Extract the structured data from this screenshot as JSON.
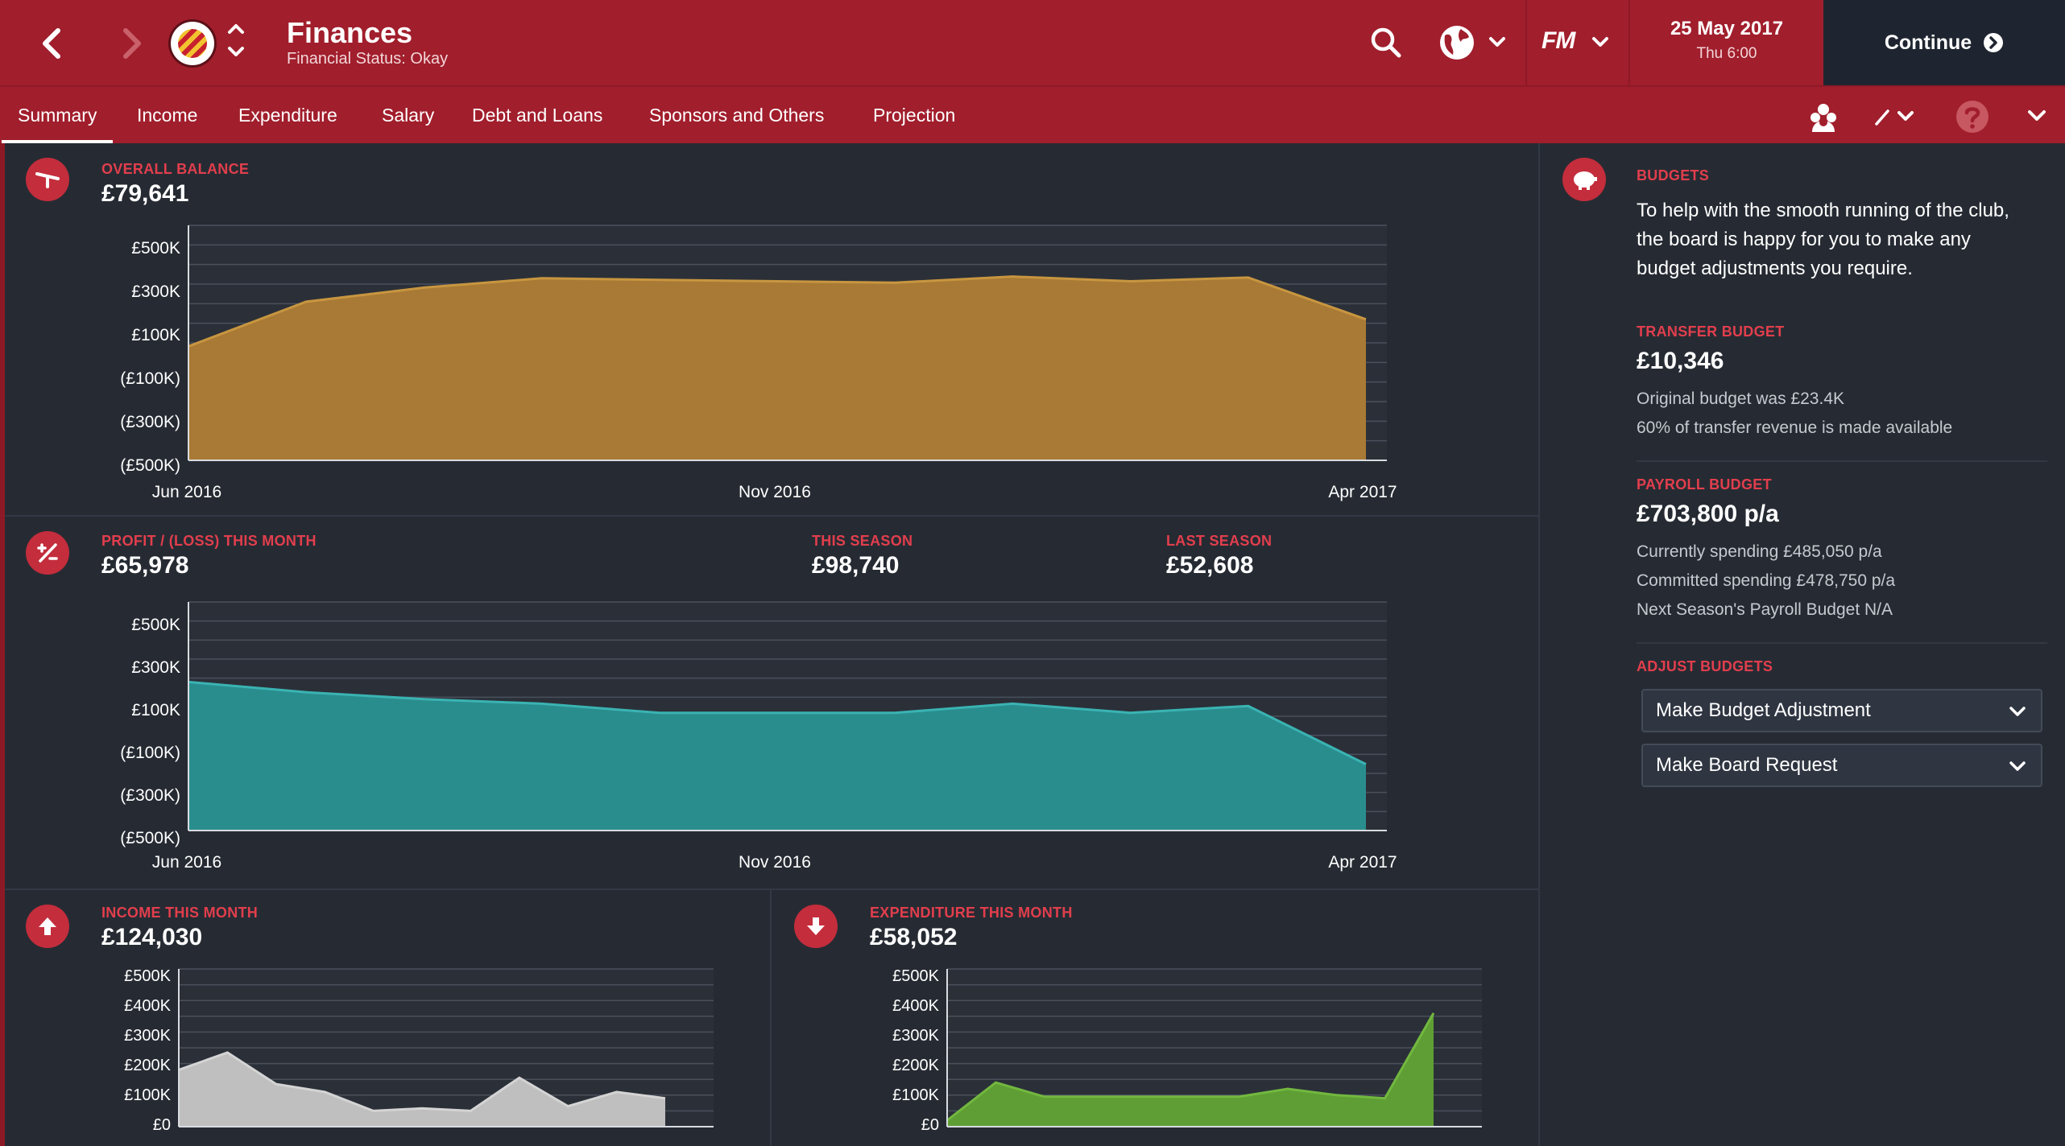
{
  "header": {
    "title": "Finances",
    "subtitle": "Financial Status: Okay",
    "date": "25 May 2017",
    "time": "Thu 6:00",
    "continue_label": "Continue",
    "fm_logo": "FM"
  },
  "tabs": [
    "Summary",
    "Income",
    "Expenditure",
    "Salary",
    "Debt and Loans",
    "Sponsors and Others",
    "Projection"
  ],
  "overall_balance": {
    "label": "OVERALL BALANCE",
    "value": "£79,641"
  },
  "profit": {
    "label": "PROFIT / (LOSS) THIS MONTH",
    "value": "£65,978",
    "season_label": "THIS SEASON",
    "season_value": "£98,740",
    "last_label": "LAST SEASON",
    "last_value": "£52,608"
  },
  "income": {
    "label": "INCOME THIS MONTH",
    "value": "£124,030"
  },
  "expenditure": {
    "label": "EXPENDITURE THIS MONTH",
    "value": "£58,052"
  },
  "right_panel": {
    "budgets_label": "BUDGETS",
    "budgets_text_1": "To help with the smooth running of the club,",
    "budgets_text_2": "the board is happy for you to make any",
    "budgets_text_3": "budget adjustments you require.",
    "transfer_label": "TRANSFER BUDGET",
    "transfer_value": "£10,346",
    "transfer_note_1": "Original budget was £23.4K",
    "transfer_note_2": "60% of transfer revenue is made available",
    "payroll_label": "PAYROLL BUDGET",
    "payroll_value": "£703,800 p/a",
    "payroll_note_1": "Currently spending £485,050 p/a",
    "payroll_note_2": "Committed spending £478,750 p/a",
    "payroll_note_3": "Next Season's Payroll Budget N/A",
    "adjust_label": "ADJUST BUDGETS",
    "dropdown_1": "Make Budget Adjustment",
    "dropdown_2": "Make Board Request"
  },
  "colors": {
    "header": "#a11e2c",
    "balance_fill": "#a97a35",
    "profit_fill": "#2a8d8d",
    "income_fill": "#bfbfbf",
    "expenditure_fill": "#5f9e34",
    "accent_label": "#e23e4d"
  },
  "chart_data": [
    {
      "type": "area",
      "name": "balance",
      "x_tick_labels": [
        "Jun 2016",
        "Nov 2016",
        "Apr 2017"
      ],
      "y_tick_labels": [
        "£500K",
        "£300K",
        "£100K",
        "(£100K)",
        "(£300K)",
        "(£500K)"
      ],
      "ylim": [
        -500000,
        500000
      ],
      "x": [
        0,
        1,
        2,
        3,
        4,
        5,
        6,
        7,
        8,
        9,
        10
      ],
      "values": [
        -15000,
        175000,
        235000,
        275000,
        268000,
        262000,
        256000,
        282000,
        262000,
        278000,
        100000
      ]
    },
    {
      "type": "area",
      "name": "profit",
      "x_tick_labels": [
        "Jun 2016",
        "Nov 2016",
        "Apr 2017"
      ],
      "y_tick_labels": [
        "£500K",
        "£300K",
        "£100K",
        "(£100K)",
        "(£300K)",
        "(£500K)"
      ],
      "ylim": [
        -500000,
        500000
      ],
      "x": [
        0,
        1,
        2,
        3,
        4,
        5,
        6,
        7,
        8,
        9,
        10
      ],
      "values": [
        150000,
        105000,
        75000,
        55000,
        15000,
        15000,
        15000,
        55000,
        15000,
        45000,
        -210000
      ]
    },
    {
      "type": "area",
      "name": "income",
      "y_tick_labels": [
        "£500K",
        "£400K",
        "£300K",
        "£200K",
        "£100K",
        "£0"
      ],
      "ylim": [
        0,
        500000
      ],
      "values": [
        180000,
        235000,
        135000,
        110000,
        50000,
        58000,
        50000,
        155000,
        65000,
        110000,
        90000
      ]
    },
    {
      "type": "area",
      "name": "expenditure",
      "y_tick_labels": [
        "£500K",
        "£400K",
        "£300K",
        "£200K",
        "£100K",
        "£0"
      ],
      "ylim": [
        0,
        500000
      ],
      "values": [
        20000,
        140000,
        95000,
        95000,
        95000,
        95000,
        95000,
        120000,
        100000,
        90000,
        360000
      ]
    }
  ]
}
